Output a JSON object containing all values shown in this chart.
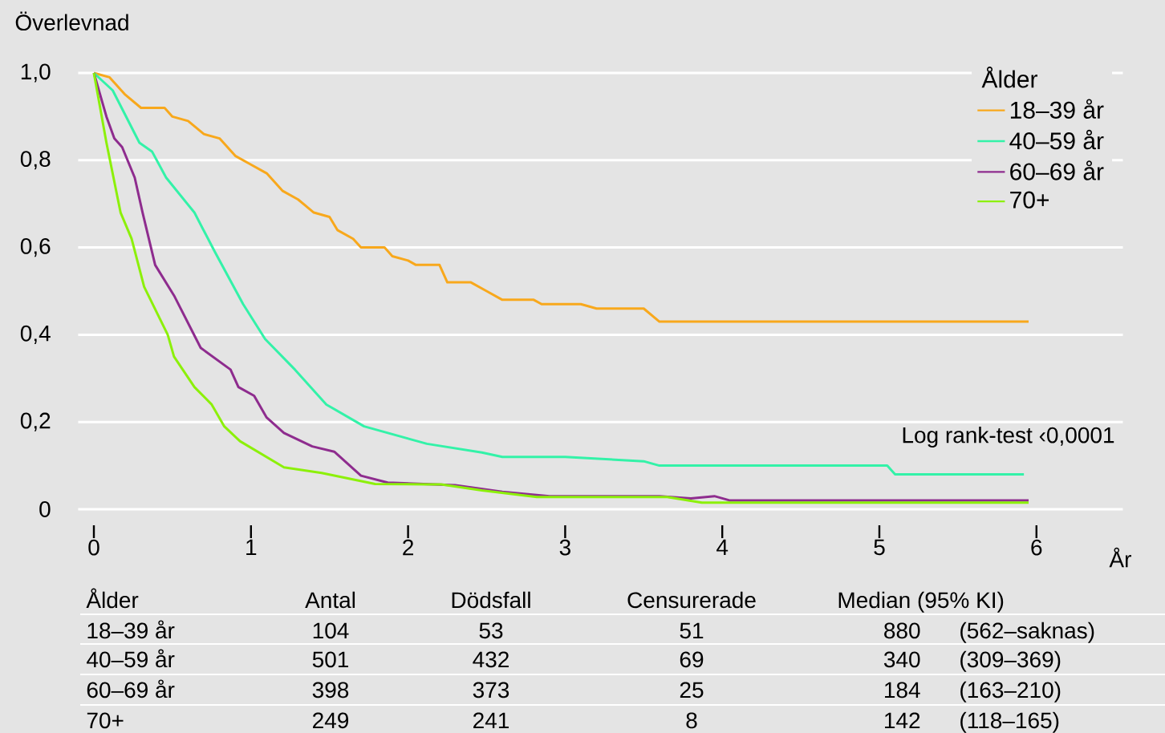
{
  "chart_data": {
    "type": "line",
    "ylabel": "Överlevnad",
    "xlabel": "År",
    "legend_title": "Ålder",
    "xlim": [
      -0.1,
      6.55
    ],
    "ylim": [
      0,
      1.0
    ],
    "xticks": [
      0,
      1,
      2,
      3,
      4,
      5,
      6
    ],
    "yticks": [
      {
        "value": 0,
        "label": "0"
      },
      {
        "value": 0.2,
        "label": "0,2"
      },
      {
        "value": 0.4,
        "label": "0,4"
      },
      {
        "value": 0.6,
        "label": "0,6"
      },
      {
        "value": 0.8,
        "label": "0,8"
      },
      {
        "value": 1.0,
        "label": "1,0"
      }
    ],
    "grid": "y",
    "legend": "top right",
    "series": [
      {
        "name": "18–39 år",
        "color": "#f8a81c",
        "x": [
          0,
          0.1,
          0.2,
          0.3,
          0.45,
          0.5,
          0.6,
          0.7,
          0.8,
          0.9,
          1.0,
          1.1,
          1.2,
          1.3,
          1.4,
          1.5,
          1.55,
          1.65,
          1.7,
          1.85,
          1.9,
          2.0,
          2.05,
          2.2,
          2.25,
          2.4,
          2.5,
          2.6,
          2.8,
          2.85,
          3.1,
          3.2,
          3.5,
          3.6,
          5.95
        ],
        "values": [
          1.0,
          0.99,
          0.95,
          0.92,
          0.92,
          0.9,
          0.89,
          0.86,
          0.85,
          0.81,
          0.79,
          0.77,
          0.73,
          0.71,
          0.68,
          0.67,
          0.64,
          0.62,
          0.6,
          0.6,
          0.58,
          0.57,
          0.56,
          0.56,
          0.52,
          0.52,
          0.5,
          0.48,
          0.48,
          0.47,
          0.47,
          0.46,
          0.46,
          0.43,
          0.43
        ]
      },
      {
        "name": "40–59 år",
        "color": "#33f2a8",
        "x": [
          0,
          0.12,
          0.29,
          0.37,
          0.46,
          0.64,
          0.77,
          0.95,
          1.09,
          1.28,
          1.48,
          1.72,
          2.12,
          2.47,
          2.6,
          3.0,
          3.5,
          3.6,
          5.05,
          5.1,
          5.92
        ],
        "values": [
          1.0,
          0.96,
          0.84,
          0.82,
          0.76,
          0.68,
          0.59,
          0.47,
          0.39,
          0.32,
          0.24,
          0.19,
          0.15,
          0.13,
          0.12,
          0.12,
          0.11,
          0.1,
          0.1,
          0.08,
          0.08
        ]
      },
      {
        "name": "60–69 år",
        "color": "#8e2c8e",
        "x": [
          0,
          0.08,
          0.13,
          0.18,
          0.26,
          0.31,
          0.39,
          0.51,
          0.68,
          0.87,
          0.92,
          1.02,
          1.1,
          1.21,
          1.39,
          1.53,
          1.7,
          1.87,
          2.3,
          2.6,
          2.9,
          3.6,
          3.8,
          3.95,
          4.05,
          5.95
        ],
        "values": [
          1.0,
          0.9,
          0.85,
          0.83,
          0.76,
          0.68,
          0.56,
          0.49,
          0.37,
          0.32,
          0.28,
          0.26,
          0.21,
          0.175,
          0.144,
          0.132,
          0.077,
          0.061,
          0.055,
          0.04,
          0.03,
          0.03,
          0.025,
          0.03,
          0.02,
          0.02
        ]
      },
      {
        "name": "70+",
        "color": "#8cf00a",
        "x": [
          0,
          0.08,
          0.17,
          0.24,
          0.32,
          0.47,
          0.51,
          0.64,
          0.75,
          0.83,
          0.93,
          1.21,
          1.45,
          1.79,
          2.12,
          2.21,
          2.47,
          2.82,
          3.65,
          3.87,
          5.95
        ],
        "values": [
          1.0,
          0.84,
          0.68,
          0.62,
          0.51,
          0.4,
          0.35,
          0.28,
          0.24,
          0.19,
          0.156,
          0.096,
          0.083,
          0.058,
          0.057,
          0.057,
          0.043,
          0.028,
          0.028,
          0.015,
          0.015
        ]
      }
    ],
    "annotations": [
      "Log rank-test ‹0,0001",
      "Ålder",
      "Antal",
      "Dödsfall",
      "Censurerade",
      "Median (95% KI)",
      "18–39 år",
      "104",
      "53",
      "51",
      "880",
      "(562–saknas)",
      "40–59 år",
      "501",
      "432",
      "69",
      "340",
      "(309–369)",
      "60–69 år",
      "398",
      "373",
      "25",
      "184",
      "(163–210)",
      "70+",
      "249",
      "241",
      "8",
      "142",
      "(118–165)"
    ]
  }
}
